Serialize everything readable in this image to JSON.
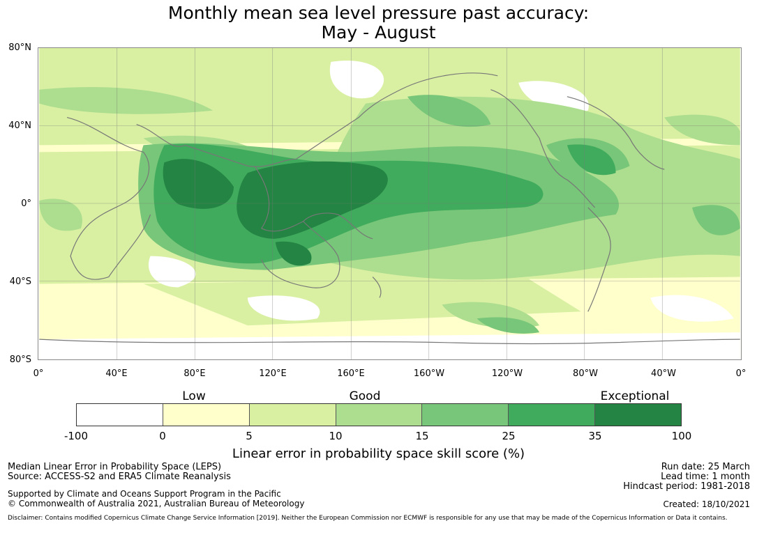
{
  "title": {
    "line1": "Monthly mean sea level pressure past accuracy:",
    "line2": "May - August"
  },
  "map": {
    "latitude_labels": [
      "80°N",
      "40°N",
      "0°",
      "40°S",
      "80°S"
    ],
    "longitude_labels": [
      "0°",
      "40°E",
      "80°E",
      "120°E",
      "160°E",
      "160°W",
      "120°W",
      "80°W",
      "40°W",
      "0°"
    ],
    "background_color": "#ffffcc",
    "gridline_color": "#777777",
    "coastline_color": "#777777"
  },
  "legend": {
    "categories": [
      "Low",
      "Good",
      "Exceptional"
    ],
    "ticks": [
      "-100",
      "0",
      "5",
      "10",
      "15",
      "25",
      "35",
      "100"
    ],
    "colors": [
      "#ffffff",
      "#ffffcc",
      "#d9f0a3",
      "#addd8e",
      "#78c679",
      "#41ab5d",
      "#238443"
    ],
    "title": "Linear error in probability space skill score (%)"
  },
  "footer": {
    "left_line1": "Median Linear Error in Probability Space (LEPS)",
    "left_line2": "Source: ACCESS-S2 and ERA5 Climate Reanalysis",
    "left_line3": "Supported by Climate and Oceans Support Program in the Pacific",
    "left_line4": "© Commonwealth of Australia 2021, Australian Bureau of Meteorology",
    "run_date": "Run date: 25 March",
    "lead_time": "Lead time: 1 month",
    "hindcast": "Hindcast period: 1981-2018",
    "created": "Created: 18/10/2021",
    "disclaimer": "Disclaimer: Contains modified Copernicus Climate Change Service Information [2019]. Neither the European Commission nor ECMWF is responsible for any use that may be made of the Copernicus Information or Data it contains."
  }
}
